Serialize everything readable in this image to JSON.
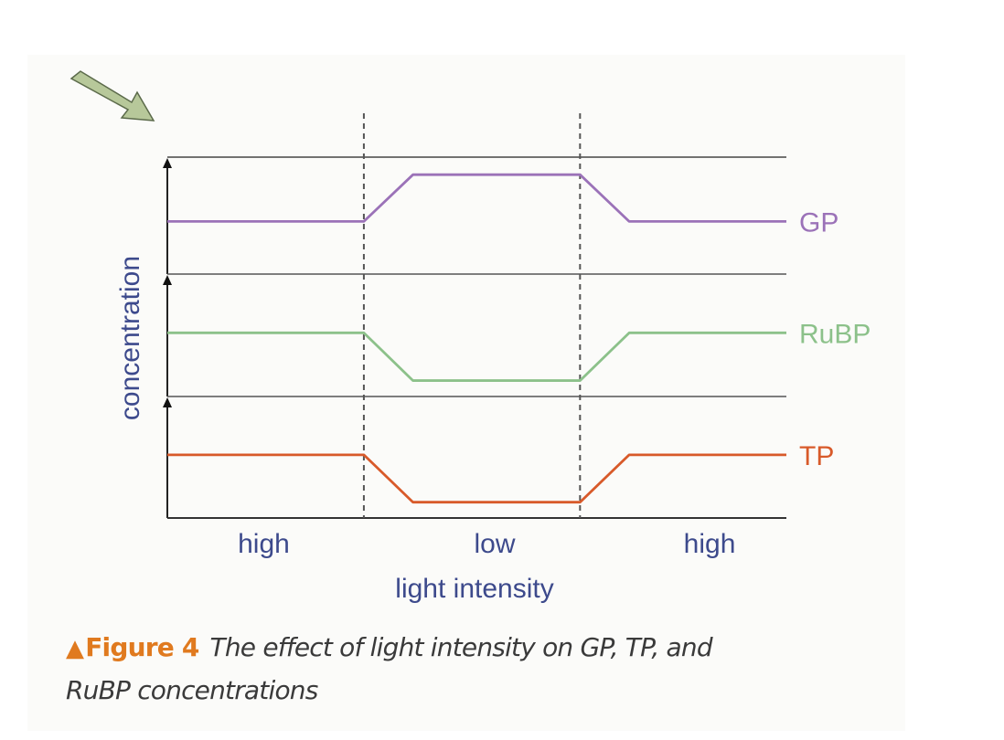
{
  "chart_data": {
    "type": "line",
    "title": "",
    "xlabel": "light intensity",
    "ylabel": "concentration",
    "regions": [
      "high",
      "low",
      "high"
    ],
    "x": [
      0,
      1,
      1.25,
      2.1,
      2.35,
      3.15
    ],
    "series": [
      {
        "name": "GP",
        "color": "#9b72b8",
        "values": [
          0.45,
          0.45,
          0.85,
          0.85,
          0.45,
          0.45
        ]
      },
      {
        "name": "RuBP",
        "color": "#8cc18a",
        "values": [
          0.52,
          0.52,
          0.13,
          0.13,
          0.52,
          0.52
        ]
      },
      {
        "name": "TP",
        "color": "#d85a2a",
        "values": [
          0.52,
          0.52,
          0.13,
          0.13,
          0.52,
          0.52
        ]
      }
    ],
    "ylim": [
      0,
      1
    ],
    "grid": false,
    "legend": "right"
  },
  "caption": {
    "figure_label": "Figure 4",
    "text": "The effect of light intensity on GP, TP, and RuBP concentrations"
  },
  "colors": {
    "axis_label": "#3d4a8c",
    "arrow_fill": "#b7c89a",
    "arrow_stroke": "#5b6a4a",
    "axis_line": "#444444",
    "accent": "#e07a1f"
  },
  "icons": {
    "pointer": "arrow-icon"
  }
}
